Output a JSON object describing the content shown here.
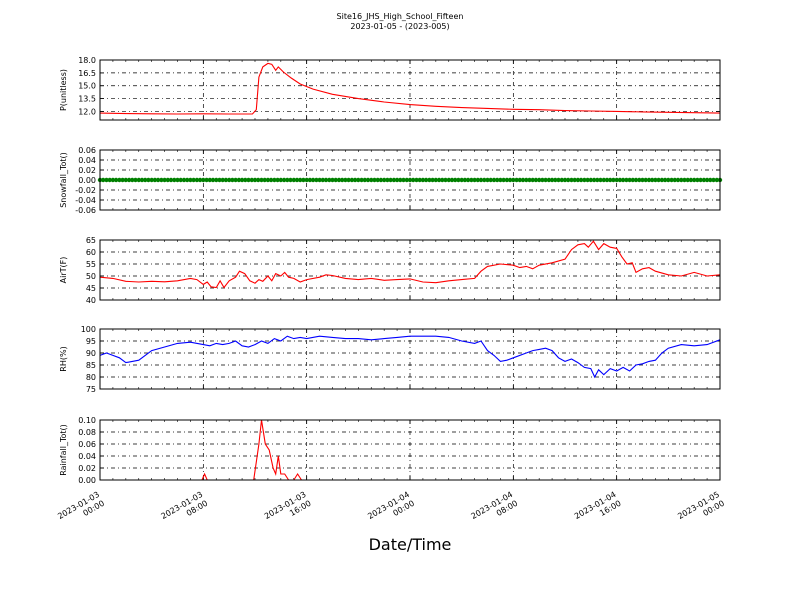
{
  "title_line1": "Site16_JHS_High_School_Fifteen",
  "title_line2": "2023-01-05 - (2023-005)",
  "xlabel": "Date/Time",
  "x_ticks": [
    {
      "t": 0,
      "l1": "2023-01-03",
      "l2": "00:00"
    },
    {
      "t": 8,
      "l1": "2023-01-03",
      "l2": "08:00"
    },
    {
      "t": 16,
      "l1": "2023-01-03",
      "l2": "16:00"
    },
    {
      "t": 24,
      "l1": "2023-01-04",
      "l2": "00:00"
    },
    {
      "t": 32,
      "l1": "2023-01-04",
      "l2": "08:00"
    },
    {
      "t": 40,
      "l1": "2023-01-04",
      "l2": "16:00"
    },
    {
      "t": 48,
      "l1": "2023-01-05",
      "l2": "00:00"
    }
  ],
  "chart_data": [
    {
      "type": "line",
      "ylabel": "P(unitless)",
      "ylim": [
        11.0,
        18.0
      ],
      "yticks": [
        12.0,
        13.5,
        15.0,
        16.5,
        18.0
      ],
      "ytick_decimals": 1,
      "grid": true,
      "series": [
        {
          "color": "#ff0000",
          "points": [
            [
              0,
              11.8
            ],
            [
              2,
              11.75
            ],
            [
              4,
              11.72
            ],
            [
              6,
              11.7
            ],
            [
              8,
              11.72
            ],
            [
              10,
              11.7
            ],
            [
              11.8,
              11.7
            ],
            [
              12.1,
              12.2
            ],
            [
              12.3,
              16.0
            ],
            [
              12.6,
              17.2
            ],
            [
              13.0,
              17.6
            ],
            [
              13.3,
              17.5
            ],
            [
              13.6,
              16.8
            ],
            [
              13.8,
              17.2
            ],
            [
              14.2,
              16.6
            ],
            [
              14.8,
              15.9
            ],
            [
              15.5,
              15.2
            ],
            [
              16.5,
              14.6
            ],
            [
              18,
              14.0
            ],
            [
              20,
              13.5
            ],
            [
              22,
              13.1
            ],
            [
              24,
              12.8
            ],
            [
              26,
              12.6
            ],
            [
              28,
              12.45
            ],
            [
              30,
              12.35
            ],
            [
              32,
              12.25
            ],
            [
              34,
              12.2
            ],
            [
              36,
              12.1
            ],
            [
              38,
              12.05
            ],
            [
              40,
              12.0
            ],
            [
              42,
              11.95
            ],
            [
              44,
              11.9
            ],
            [
              46,
              11.85
            ],
            [
              48,
              11.8
            ]
          ]
        }
      ]
    },
    {
      "type": "line",
      "ylabel": "Snowfall_Tot()",
      "ylim": [
        -0.06,
        0.06
      ],
      "yticks": [
        -0.06,
        -0.04,
        -0.02,
        0.0,
        0.02,
        0.04,
        0.06
      ],
      "ytick_decimals": 2,
      "grid": true,
      "series": [
        {
          "color": "#008000",
          "markers": true,
          "points": [
            [
              0,
              0
            ],
            [
              48,
              0
            ]
          ]
        }
      ]
    },
    {
      "type": "line",
      "ylabel": "AirT(F)",
      "ylim": [
        40,
        65
      ],
      "yticks": [
        40,
        45,
        50,
        55,
        60,
        65
      ],
      "ytick_decimals": 0,
      "grid": true,
      "series": [
        {
          "color": "#ff0000",
          "points": [
            [
              0,
              49.5
            ],
            [
              1,
              49
            ],
            [
              2,
              47.8
            ],
            [
              3,
              47.5
            ],
            [
              4,
              47.8
            ],
            [
              5,
              47.6
            ],
            [
              6,
              48
            ],
            [
              7,
              49
            ],
            [
              7.5,
              48.5
            ],
            [
              8,
              46.5
            ],
            [
              8.3,
              47.5
            ],
            [
              8.6,
              45.5
            ],
            [
              9,
              45.2
            ],
            [
              9.3,
              48
            ],
            [
              9.6,
              45.2
            ],
            [
              10,
              48
            ],
            [
              10.5,
              49.5
            ],
            [
              10.8,
              52
            ],
            [
              11.2,
              51
            ],
            [
              11.6,
              48
            ],
            [
              12,
              47
            ],
            [
              12.3,
              48.5
            ],
            [
              12.6,
              47.8
            ],
            [
              13,
              50
            ],
            [
              13.3,
              48
            ],
            [
              13.6,
              51
            ],
            [
              14,
              50
            ],
            [
              14.3,
              51.5
            ],
            [
              14.6,
              49.5
            ],
            [
              15,
              49
            ],
            [
              15.5,
              47.5
            ],
            [
              16,
              48.5
            ],
            [
              17,
              49.5
            ],
            [
              17.5,
              50.5
            ],
            [
              18,
              50.2
            ],
            [
              19,
              49
            ],
            [
              20,
              48.5
            ],
            [
              21,
              49
            ],
            [
              22,
              48.2
            ],
            [
              23,
              48.5
            ],
            [
              24,
              48.8
            ],
            [
              25,
              47.5
            ],
            [
              26,
              47.2
            ],
            [
              27,
              48
            ],
            [
              28,
              48.5
            ],
            [
              29,
              49
            ],
            [
              29.5,
              52
            ],
            [
              30,
              54
            ],
            [
              31,
              55
            ],
            [
              32,
              54.5
            ],
            [
              32.5,
              53.5
            ],
            [
              33,
              54
            ],
            [
              33.5,
              53
            ],
            [
              34,
              54.5
            ],
            [
              35,
              55.5
            ],
            [
              36,
              57
            ],
            [
              36.5,
              61
            ],
            [
              37,
              63
            ],
            [
              37.5,
              63.5
            ],
            [
              37.8,
              62
            ],
            [
              38.2,
              64.5
            ],
            [
              38.6,
              61
            ],
            [
              39,
              63.5
            ],
            [
              39.5,
              62
            ],
            [
              40,
              61.5
            ],
            [
              40.4,
              58
            ],
            [
              40.8,
              55
            ],
            [
              41.2,
              55.5
            ],
            [
              41.5,
              51.5
            ],
            [
              42,
              53
            ],
            [
              42.5,
              53.5
            ],
            [
              43,
              52
            ],
            [
              44,
              50.5
            ],
            [
              45,
              50
            ],
            [
              46,
              51.5
            ],
            [
              47,
              50
            ],
            [
              48,
              50.5
            ]
          ]
        }
      ]
    },
    {
      "type": "line",
      "ylabel": "RH(%)",
      "ylim": [
        75,
        100
      ],
      "yticks": [
        75,
        80,
        85,
        90,
        95,
        100
      ],
      "ytick_decimals": 0,
      "grid": true,
      "series": [
        {
          "color": "#0000ff",
          "points": [
            [
              0,
              89
            ],
            [
              0.5,
              90
            ],
            [
              1,
              89
            ],
            [
              1.5,
              88
            ],
            [
              2,
              86
            ],
            [
              3,
              87
            ],
            [
              4,
              91
            ],
            [
              5,
              92.5
            ],
            [
              6,
              94
            ],
            [
              7,
              94.5
            ],
            [
              8,
              93.5
            ],
            [
              8.5,
              93
            ],
            [
              9,
              94
            ],
            [
              9.5,
              93.5
            ],
            [
              10,
              94
            ],
            [
              10.5,
              95
            ],
            [
              11,
              93
            ],
            [
              11.5,
              92.5
            ],
            [
              12,
              93.5
            ],
            [
              12.5,
              95
            ],
            [
              13,
              94
            ],
            [
              13.5,
              96
            ],
            [
              14,
              95
            ],
            [
              14.5,
              97
            ],
            [
              15,
              96
            ],
            [
              15.5,
              96.5
            ],
            [
              16,
              96
            ],
            [
              17,
              97
            ],
            [
              18,
              96.5
            ],
            [
              19,
              96
            ],
            [
              20,
              96
            ],
            [
              21,
              95.5
            ],
            [
              22,
              96
            ],
            [
              23,
              96.5
            ],
            [
              24,
              97
            ],
            [
              25,
              97
            ],
            [
              26,
              97
            ],
            [
              27,
              96.5
            ],
            [
              28,
              95
            ],
            [
              29,
              94
            ],
            [
              29.5,
              95
            ],
            [
              30,
              91
            ],
            [
              30.5,
              89
            ],
            [
              31,
              86.5
            ],
            [
              31.5,
              87
            ],
            [
              32,
              88
            ],
            [
              33,
              90
            ],
            [
              33.5,
              91
            ],
            [
              34,
              91.5
            ],
            [
              34.5,
              92
            ],
            [
              35,
              91
            ],
            [
              35.5,
              88
            ],
            [
              36,
              86.5
            ],
            [
              36.5,
              87.5
            ],
            [
              37,
              86
            ],
            [
              37.5,
              84
            ],
            [
              38,
              83.5
            ],
            [
              38.3,
              80
            ],
            [
              38.6,
              83
            ],
            [
              39,
              81
            ],
            [
              39.5,
              83.5
            ],
            [
              40,
              82.5
            ],
            [
              40.5,
              84
            ],
            [
              41,
              82.5
            ],
            [
              41.5,
              85
            ],
            [
              42,
              85.5
            ],
            [
              42.5,
              86.5
            ],
            [
              43,
              87
            ],
            [
              43.5,
              90
            ],
            [
              44,
              92
            ],
            [
              45,
              93.5
            ],
            [
              46,
              93
            ],
            [
              47,
              93.5
            ],
            [
              48,
              95.5
            ]
          ]
        }
      ]
    },
    {
      "type": "line",
      "ylabel": "Rainfall_Tot()",
      "ylim": [
        0.0,
        0.1
      ],
      "yticks": [
        0.0,
        0.02,
        0.04,
        0.06,
        0.08,
        0.1
      ],
      "ytick_decimals": 2,
      "grid": true,
      "series": [
        {
          "color": "#ff0000",
          "points": [
            [
              0,
              0
            ],
            [
              7.9,
              0
            ],
            [
              8.1,
              0.01
            ],
            [
              8.3,
              0
            ],
            [
              11.9,
              0
            ],
            [
              12.3,
              0.06
            ],
            [
              12.5,
              0.1
            ],
            [
              12.8,
              0.06
            ],
            [
              13.1,
              0.05
            ],
            [
              13.4,
              0.02
            ],
            [
              13.6,
              0.01
            ],
            [
              13.8,
              0.04
            ],
            [
              14.0,
              0.01
            ],
            [
              14.3,
              0.01
            ],
            [
              14.6,
              0
            ],
            [
              15.0,
              0
            ],
            [
              15.3,
              0.01
            ],
            [
              15.6,
              0
            ],
            [
              48,
              0
            ]
          ]
        }
      ]
    }
  ]
}
